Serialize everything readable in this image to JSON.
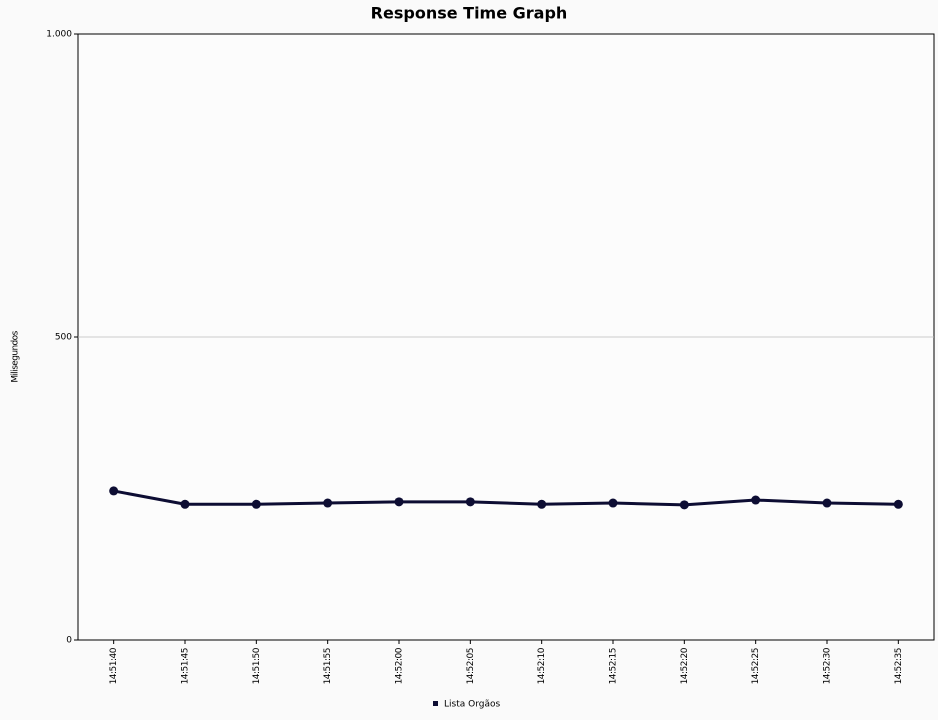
{
  "chart_data": {
    "type": "line",
    "title": "Response Time Graph",
    "y_label": "Milisegundos",
    "categories": [
      "14:51:40",
      "14:51:45",
      "14:51:50",
      "14:51:55",
      "14:52:00",
      "14:52:05",
      "14:52:10",
      "14:52:15",
      "14:52:20",
      "14:52:25",
      "14:52:30",
      "14:52:35"
    ],
    "series": [
      {
        "name": "Lista Orgãos",
        "color": "#0d0d33",
        "values": [
          246,
          224,
          224,
          226,
          228,
          228,
          224,
          226,
          223,
          231,
          226,
          224
        ]
      }
    ],
    "ylim": [
      0,
      1000
    ],
    "yticks": [
      0,
      500,
      {
        "value": 1000,
        "label": "1.000"
      }
    ],
    "grid": true
  }
}
